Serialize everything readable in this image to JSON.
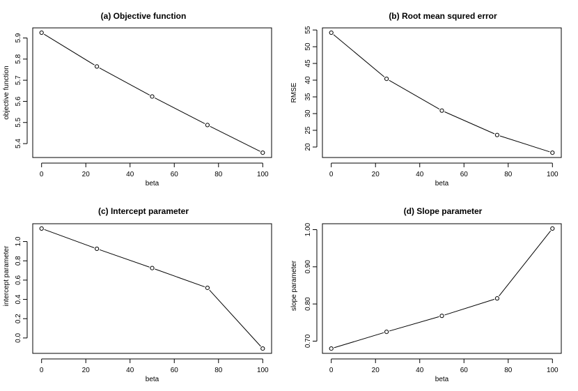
{
  "chart_data": [
    {
      "type": "line",
      "title": "(a) Objective function",
      "xlabel": "beta",
      "ylabel": "objective function",
      "x": [
        0,
        25,
        50,
        75,
        100
      ],
      "series": [
        {
          "values": [
            5.925,
            5.765,
            5.623,
            5.488,
            5.357
          ]
        }
      ],
      "xlim": [
        0,
        100
      ],
      "ylim": [
        5.357,
        5.925
      ],
      "xticks": [
        0,
        20,
        40,
        60,
        80,
        100
      ],
      "yticks": [
        5.4,
        5.5,
        5.6,
        5.7,
        5.8,
        5.9
      ],
      "xtick_labels": [
        "0",
        "20",
        "40",
        "60",
        "80",
        "100"
      ],
      "ytick_labels": [
        "5.4",
        "5.5",
        "5.6",
        "5.7",
        "5.8",
        "5.9"
      ],
      "grid": false,
      "marker": "open-circle"
    },
    {
      "type": "line",
      "title": "(b) Root mean squred error",
      "xlabel": "beta",
      "ylabel": "RMSE",
      "x": [
        0,
        25,
        50,
        75,
        100
      ],
      "series": [
        {
          "values": [
            54.2,
            40.4,
            30.9,
            23.6,
            18.3
          ]
        }
      ],
      "xlim": [
        0,
        100
      ],
      "ylim": [
        18.3,
        54.2
      ],
      "xticks": [
        0,
        20,
        40,
        60,
        80,
        100
      ],
      "yticks": [
        20,
        25,
        30,
        35,
        40,
        45,
        50,
        55
      ],
      "xtick_labels": [
        "0",
        "20",
        "40",
        "60",
        "80",
        "100"
      ],
      "ytick_labels": [
        "20",
        "25",
        "30",
        "35",
        "40",
        "45",
        "50",
        "55"
      ],
      "grid": false,
      "marker": "open-circle"
    },
    {
      "type": "line",
      "title": "(c) Intercept parameter",
      "xlabel": "beta",
      "ylabel": "intercept parameter",
      "x": [
        0,
        25,
        50,
        75,
        100
      ],
      "series": [
        {
          "values": [
            1.135,
            0.925,
            0.725,
            0.52,
            -0.11
          ]
        }
      ],
      "xlim": [
        0,
        100
      ],
      "ylim": [
        -0.11,
        1.135
      ],
      "xticks": [
        0,
        20,
        40,
        60,
        80,
        100
      ],
      "yticks": [
        0.0,
        0.2,
        0.4,
        0.6,
        0.8,
        1.0
      ],
      "xtick_labels": [
        "0",
        "20",
        "40",
        "60",
        "80",
        "100"
      ],
      "ytick_labels": [
        "0.0",
        "0.2",
        "0.4",
        "0.6",
        "0.8",
        "1.0"
      ],
      "grid": false,
      "marker": "open-circle"
    },
    {
      "type": "line",
      "title": "(d) Slope parameter",
      "xlabel": "beta",
      "ylabel": "slope parameter",
      "x": [
        0,
        25,
        50,
        75,
        100
      ],
      "series": [
        {
          "values": [
            0.68,
            0.725,
            0.768,
            0.815,
            1.003
          ]
        }
      ],
      "xlim": [
        0,
        100
      ],
      "ylim": [
        0.68,
        1.003
      ],
      "xticks": [
        0,
        20,
        40,
        60,
        80,
        100
      ],
      "yticks": [
        0.7,
        0.8,
        0.9,
        1.0
      ],
      "xtick_labels": [
        "0",
        "20",
        "40",
        "60",
        "80",
        "100"
      ],
      "ytick_labels": [
        "0.70",
        "0.80",
        "0.90",
        "1.00"
      ],
      "grid": false,
      "marker": "open-circle"
    }
  ]
}
